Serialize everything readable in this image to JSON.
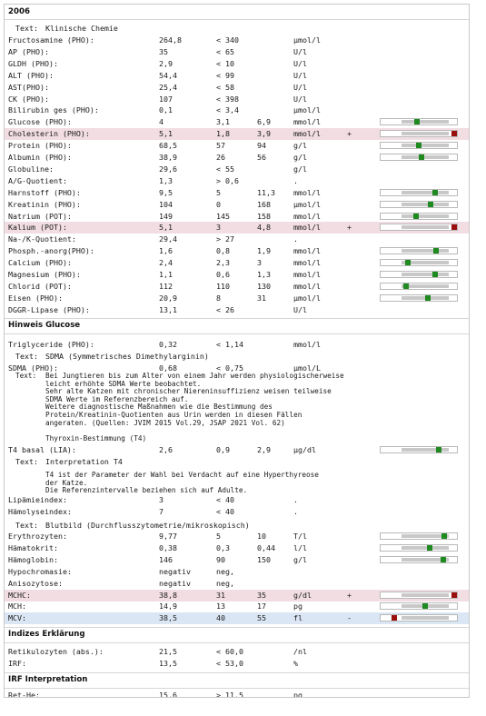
{
  "section_title": "2006",
  "text_klinische": {
    "label": "Text:",
    "value": "Klinische Chemie"
  },
  "rows_a": [
    {
      "name": "Fructosamine (PHO):",
      "value": "264,8",
      "lo": "< 340",
      "hi": "",
      "unit": "µmol/l",
      "flag": "",
      "hl": ""
    },
    {
      "name": "AP (PHO):",
      "value": "35",
      "lo": "< 65",
      "hi": "",
      "unit": "U/l",
      "flag": "",
      "hl": ""
    },
    {
      "name": "GLDH (PHO):",
      "value": "2,9",
      "lo": "< 10",
      "hi": "",
      "unit": "U/l",
      "flag": "",
      "hl": ""
    },
    {
      "name": "ALT (PHO):",
      "value": "54,4",
      "lo": "< 99",
      "hi": "",
      "unit": "U/l",
      "flag": "",
      "hl": ""
    },
    {
      "name": "AST(PHO):",
      "value": "25,4",
      "lo": "< 58",
      "hi": "",
      "unit": "U/l",
      "flag": "",
      "hl": ""
    },
    {
      "name": "CK (PHO):",
      "value": "107",
      "lo": "< 398",
      "hi": "",
      "unit": "U/l",
      "flag": "",
      "hl": ""
    },
    {
      "name": "Bilirubin ges (PHO):",
      "value": "0,1",
      "lo": "< 3,4",
      "hi": "",
      "unit": "µmol/l",
      "flag": "",
      "hl": ""
    },
    {
      "name": "Glucose (PHO):",
      "value": "4",
      "lo": "3,1",
      "hi": "6,9",
      "unit": "mmol/l",
      "flag": "",
      "hl": "",
      "bar": {
        "level": 0.32,
        "high": false
      }
    },
    {
      "name": "Cholesterin (PHO):",
      "value": "5,1",
      "lo": "1,8",
      "hi": "3,9",
      "unit": "mmol/l",
      "flag": "+",
      "hl": "red",
      "bar": {
        "level": 1.0,
        "high": true
      }
    },
    {
      "name": "Protein (PHO):",
      "value": "68,5",
      "lo": "57",
      "hi": "94",
      "unit": "g/l",
      "flag": "",
      "hl": "",
      "bar": {
        "level": 0.37,
        "high": false
      }
    },
    {
      "name": "Albumin (PHO):",
      "value": "38,9",
      "lo": "26",
      "hi": "56",
      "unit": "g/l",
      "flag": "",
      "hl": "",
      "bar": {
        "level": 0.43,
        "high": false
      }
    },
    {
      "name": "Globuline:",
      "value": "29,6",
      "lo": "< 55",
      "hi": "",
      "unit": "g/l",
      "flag": "",
      "hl": ""
    },
    {
      "name": "A/G-Quotient:",
      "value": "1,3",
      "lo": "> 0,6",
      "hi": "",
      "unit": ".",
      "flag": "",
      "hl": ""
    },
    {
      "name": "Harnstoff (PHO):",
      "value": "9,5",
      "lo": "5",
      "hi": "11,3",
      "unit": "mmol/l",
      "flag": "",
      "hl": "",
      "bar": {
        "level": 0.71,
        "high": false
      }
    },
    {
      "name": "Kreatinin (PHO):",
      "value": "104",
      "lo": "0",
      "hi": "168",
      "unit": "µmol/l",
      "flag": "",
      "hl": "",
      "bar": {
        "level": 0.62,
        "high": false
      }
    },
    {
      "name": "Natrium (POT):",
      "value": "149",
      "lo": "145",
      "hi": "158",
      "unit": "mmol/l",
      "flag": "",
      "hl": "",
      "bar": {
        "level": 0.31,
        "high": false
      }
    },
    {
      "name": "Kalium (POT):",
      "value": "5,1",
      "lo": "3",
      "hi": "4,8",
      "unit": "mmol/l",
      "flag": "+",
      "hl": "red",
      "bar": {
        "level": 1.0,
        "high": true
      }
    },
    {
      "name": "Na-/K-Quotient:",
      "value": "29,4",
      "lo": "> 27",
      "hi": "",
      "unit": ".",
      "flag": "",
      "hl": ""
    },
    {
      "name": "Phosph.-anorg(PHO):",
      "value": "1,6",
      "lo": "0,8",
      "hi": "1,9",
      "unit": "mmol/l",
      "flag": "",
      "hl": "",
      "bar": {
        "level": 0.73,
        "high": false
      }
    },
    {
      "name": "Calcium (PHO):",
      "value": "2,4",
      "lo": "2,3",
      "hi": "3",
      "unit": "mmol/l",
      "flag": "",
      "hl": "",
      "bar": {
        "level": 0.14,
        "high": false
      }
    },
    {
      "name": "Magnesium (PHO):",
      "value": "1,1",
      "lo": "0,6",
      "hi": "1,3",
      "unit": "mmol/l",
      "flag": "",
      "hl": "",
      "bar": {
        "level": 0.71,
        "high": false
      }
    },
    {
      "name": "Chlorid (POT):",
      "value": "112",
      "lo": "110",
      "hi": "130",
      "unit": "mmol/l",
      "flag": "",
      "hl": "",
      "bar": {
        "level": 0.1,
        "high": false
      }
    },
    {
      "name": "Eisen (PHO):",
      "value": "20,9",
      "lo": "8",
      "hi": "31",
      "unit": "µmol/l",
      "flag": "",
      "hl": "",
      "bar": {
        "level": 0.56,
        "high": false
      }
    },
    {
      "name": "DGGR-Lipase (PHO):",
      "value": "13,1",
      "lo": "< 26",
      "hi": "",
      "unit": "U/l",
      "flag": "",
      "hl": ""
    }
  ],
  "hinweis_glucose": "Hinweis Glucose",
  "triglyceride": {
    "name": "Triglyceride (PHO):",
    "value": "0,32",
    "lo": "< 1,14",
    "hi": "",
    "unit": "mmol/l",
    "flag": "",
    "hl": ""
  },
  "text_sdma": {
    "label": "Text:",
    "value": "SDMA (Symmetrisches Dimethylarginin)"
  },
  "sdma": {
    "name": "SDMA (PHO):",
    "value": "0,68",
    "lo": "< 0,75",
    "hi": "",
    "unit": "µmol/L",
    "flag": "",
    "hl": ""
  },
  "sdma_note": {
    "label": "Text:",
    "lines": [
      "Bei Jungtieren bis zum Alter von einem Jahr werden physiologischerweise",
      "leicht erhöhte SDMA Werte beobachtet.",
      "Sehr alte Katzen mit chronischer Niereninsuffizienz weisen teilweise",
      "SDMA Werte im Referenzbereich auf.",
      "Weitere diagnostische Maßnahmen wie die Bestimmung des",
      "Protein/Kreatinin-Quotienten aus Urin werden in diesen Fällen",
      "angeraten. (Quellen: JVIM 2015 Vol.29, JSAP 2021 Vol. 62)",
      "",
      "Thyroxin-Bestimmung (T4)"
    ]
  },
  "t4": {
    "name": "T4 basal (LIA):",
    "value": "2,6",
    "lo": "0,9",
    "hi": "2,9",
    "unit": "µg/dl",
    "flag": "",
    "hl": "",
    "bar": {
      "level": 0.78,
      "high": false
    }
  },
  "text_t4": {
    "label": "Text:",
    "value": "Interpretation T4"
  },
  "t4_note": {
    "lines": [
      "T4 ist der Parameter der Wahl bei Verdacht auf eine Hyperthyreose",
      "der Katze.",
      "Die Referenzintervalle beziehen sich auf Adulte."
    ]
  },
  "rows_b": [
    {
      "name": "Lipämieindex:",
      "value": "3",
      "lo": "< 40",
      "hi": "",
      "unit": ".",
      "flag": "",
      "hl": ""
    },
    {
      "name": "Hämolyseindex:",
      "value": "7",
      "lo": "< 40",
      "hi": "",
      "unit": ".",
      "flag": "",
      "hl": ""
    }
  ],
  "text_blutbild": {
    "label": "Text:",
    "value": "Blutbild (Durchflusszytometrie/mikroskopisch)"
  },
  "rows_c": [
    {
      "name": "Erythrozyten:",
      "value": "9,77",
      "lo": "5",
      "hi": "10",
      "unit": "T/l",
      "flag": "",
      "hl": "",
      "bar": {
        "level": 0.9,
        "high": false
      }
    },
    {
      "name": "Hämatokrit:",
      "value": "0,38",
      "lo": "0,3",
      "hi": "0,44",
      "unit": "l/l",
      "flag": "",
      "hl": "",
      "bar": {
        "level": 0.6,
        "high": false
      }
    },
    {
      "name": "Hämoglobin:",
      "value": "146",
      "lo": "90",
      "hi": "150",
      "unit": "g/l",
      "flag": "",
      "hl": "",
      "bar": {
        "level": 0.88,
        "high": false
      }
    },
    {
      "name": "Hypochromasie:",
      "value": "negativ",
      "lo": "neg,",
      "hi": "",
      "unit": "",
      "flag": "",
      "hl": ""
    },
    {
      "name": "Anisozytose:",
      "value": "negativ",
      "lo": "neg,",
      "hi": "",
      "unit": "",
      "flag": "",
      "hl": ""
    },
    {
      "name": "MCHC:",
      "value": "38,8",
      "lo": "31",
      "hi": "35",
      "unit": "g/dl",
      "flag": "+",
      "hl": "red",
      "bar": {
        "level": 1.0,
        "high": true
      }
    },
    {
      "name": "MCH:",
      "value": "14,9",
      "lo": "13",
      "hi": "17",
      "unit": "pg",
      "flag": "",
      "hl": "",
      "bar": {
        "level": 0.5,
        "high": false
      }
    },
    {
      "name": "MCV:",
      "value": "38,5",
      "lo": "40",
      "hi": "55",
      "unit": "fl",
      "flag": "-",
      "hl": "blue",
      "bar": {
        "level": 0.0,
        "high": true
      }
    }
  ],
  "indizes_erklaerung": "Indizes Erklärung",
  "rows_d": [
    {
      "name": "Retikulozyten (abs.):",
      "value": "21,5",
      "lo": "< 60,0",
      "hi": "",
      "unit": "/nl",
      "flag": "",
      "hl": ""
    },
    {
      "name": "IRF:",
      "value": "13,5",
      "lo": "< 53,0",
      "hi": "",
      "unit": "%",
      "flag": "",
      "hl": ""
    }
  ],
  "irf_interpretation": "IRF Interpretation",
  "rows_e": [
    {
      "name": "Ret-He:",
      "value": "15,6",
      "lo": "> 11,5",
      "hi": "",
      "unit": "pg",
      "flag": "",
      "hl": ""
    }
  ],
  "colors": {
    "in_range_marker": "#1f8a1f",
    "out_of_range_marker": "#9a0e0e",
    "high_row": "#f1dde2",
    "low_row": "#dbe6f4"
  }
}
